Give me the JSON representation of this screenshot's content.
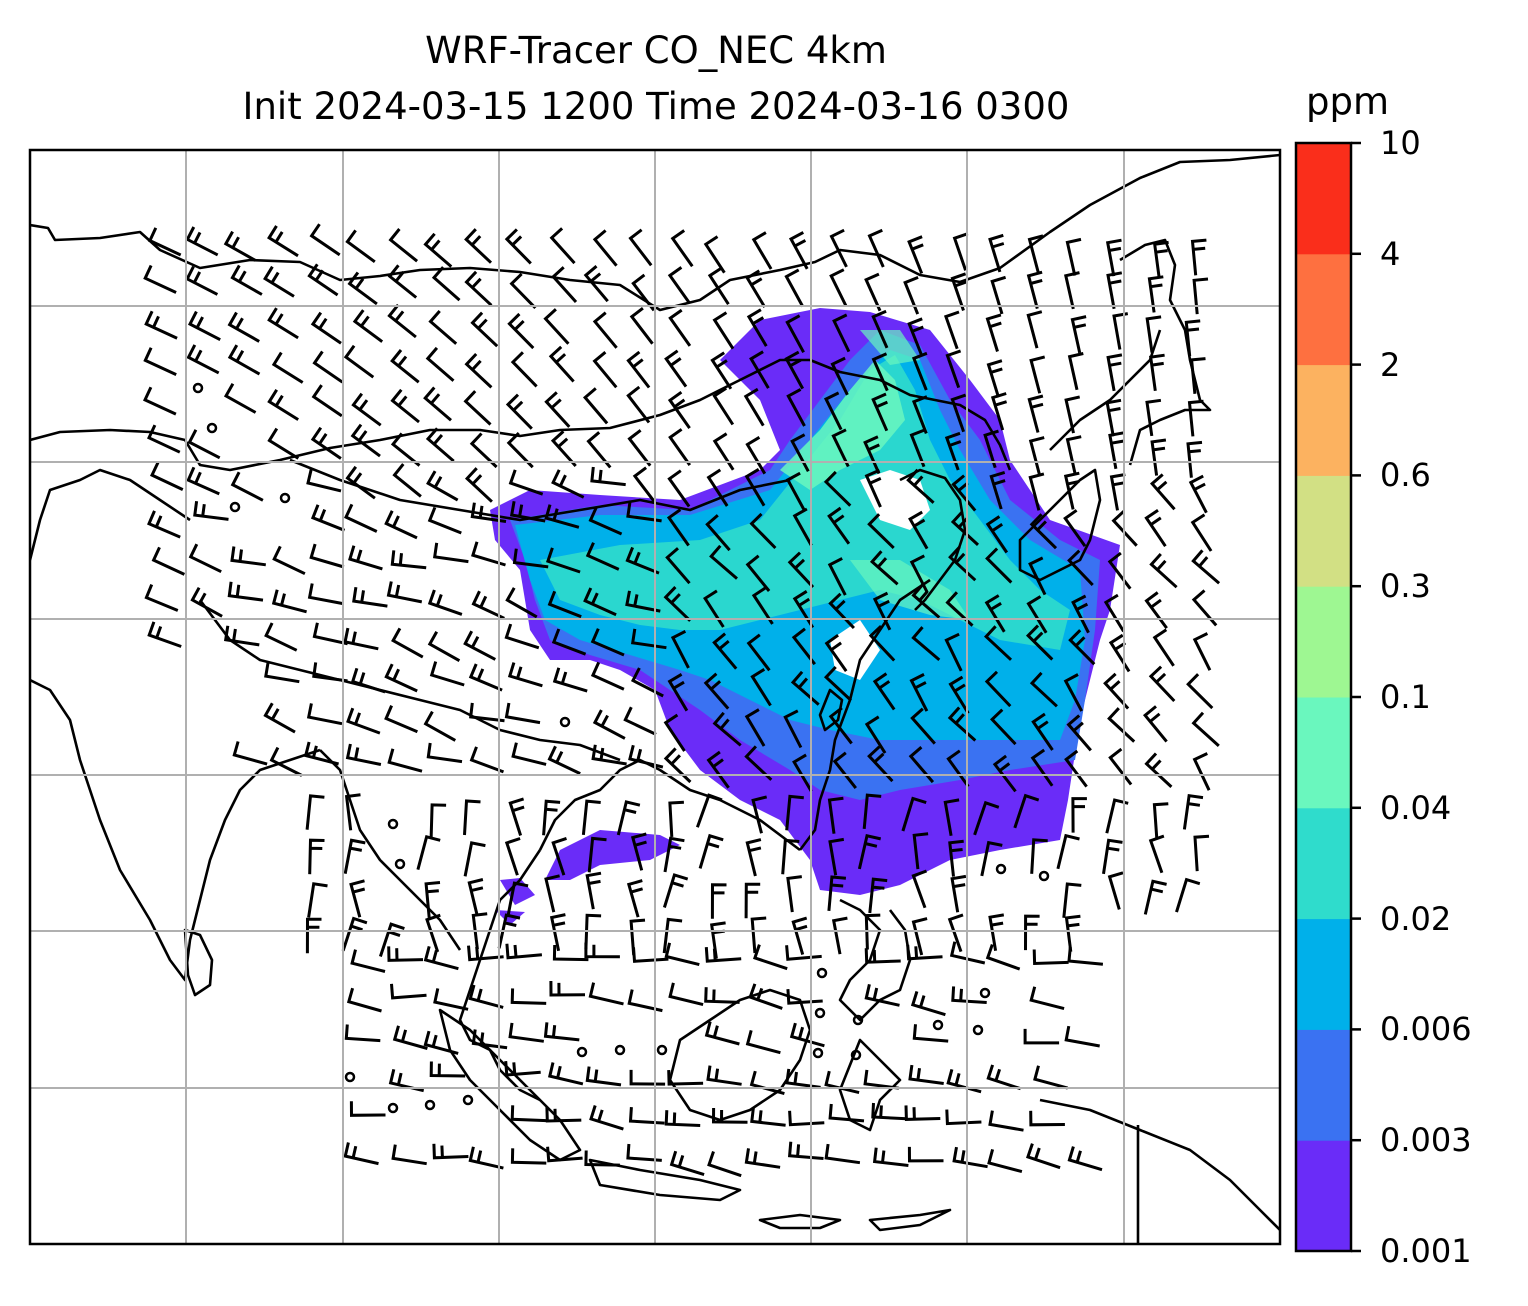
{
  "title": {
    "line1": "WRF-Tracer CO_NEC 4km",
    "line2": "Init 2024-03-15 1200 Time 2024-03-16 0300"
  },
  "colorbar": {
    "unit": "ppm",
    "levels": [
      "0.001",
      "0.003",
      "0.006",
      "0.02",
      "0.04",
      "0.1",
      "0.3",
      "0.6",
      "2",
      "4",
      "10"
    ],
    "colors": [
      "#6a2cf8",
      "#3a72f2",
      "#00b0ea",
      "#2fdccc",
      "#6af7be",
      "#9ef792",
      "#d2e084",
      "#fcb260",
      "#fe7040",
      "#fa2e1b"
    ]
  },
  "map": {
    "gridlines": true,
    "wind_barbs": true,
    "field": "CO_NEC tracer concentration"
  }
}
